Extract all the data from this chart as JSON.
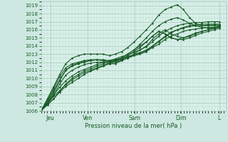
{
  "bg_color": "#cce8e0",
  "plot_bg_color": "#d8f0e8",
  "grid_color_major": "#a8c8c0",
  "grid_color_minor": "#b8d8d0",
  "line_color": "#1a5c28",
  "marker_color": "#1a5c28",
  "xlabel_text": "Pression niveau de la mer( hPa )",
  "ylim": [
    1006,
    1019.5
  ],
  "yticks": [
    1006,
    1007,
    1008,
    1009,
    1010,
    1011,
    1012,
    1013,
    1014,
    1015,
    1016,
    1017,
    1018,
    1019
  ],
  "xlim": [
    0.0,
    4.35
  ],
  "xtick_positions": [
    0.22,
    1.1,
    2.2,
    3.3,
    4.2
  ],
  "xtick_labels": [
    "Jeu",
    "Ven",
    "Sam",
    "Dim",
    "L"
  ],
  "series": [
    [
      1006.0,
      1006.8,
      1007.5,
      1008.3,
      1009.0,
      1009.5,
      1010.0,
      1010.5,
      1010.9,
      1011.2,
      1011.5,
      1011.8,
      1012.0,
      1012.2,
      1012.5,
      1012.8,
      1013.0,
      1013.3,
      1013.8,
      1014.2,
      1014.8,
      1015.2,
      1015.5,
      1015.8,
      1016.0,
      1016.1,
      1016.2,
      1016.3,
      1016.3,
      1016.4
    ],
    [
      1006.0,
      1006.9,
      1007.8,
      1008.5,
      1009.2,
      1009.8,
      1010.3,
      1010.7,
      1011.0,
      1011.3,
      1011.6,
      1011.9,
      1012.2,
      1012.4,
      1012.6,
      1012.9,
      1013.2,
      1013.5,
      1014.0,
      1014.6,
      1015.2,
      1015.7,
      1016.0,
      1016.2,
      1016.4,
      1016.5,
      1016.5,
      1016.6,
      1016.6,
      1016.6
    ],
    [
      1006.0,
      1006.7,
      1007.5,
      1008.4,
      1009.3,
      1010.0,
      1010.5,
      1010.9,
      1011.2,
      1011.5,
      1011.8,
      1012.1,
      1012.3,
      1012.5,
      1012.7,
      1012.9,
      1013.1,
      1013.4,
      1013.9,
      1014.5,
      1015.1,
      1015.6,
      1016.0,
      1016.3,
      1016.5,
      1016.6,
      1016.7,
      1016.7,
      1016.7,
      1016.7
    ],
    [
      1006.1,
      1007.0,
      1008.0,
      1008.9,
      1009.7,
      1010.3,
      1010.8,
      1011.1,
      1011.4,
      1011.7,
      1012.0,
      1012.2,
      1012.4,
      1012.7,
      1012.9,
      1013.2,
      1013.5,
      1013.9,
      1014.5,
      1015.2,
      1015.8,
      1016.2,
      1016.5,
      1016.7,
      1016.8,
      1016.9,
      1016.9,
      1017.0,
      1017.0,
      1017.0
    ],
    [
      1006.0,
      1006.9,
      1008.0,
      1009.3,
      1010.4,
      1011.0,
      1011.4,
      1011.7,
      1011.9,
      1012.0,
      1012.0,
      1011.8,
      1011.8,
      1012.2,
      1012.5,
      1013.0,
      1013.5,
      1014.0,
      1014.8,
      1015.5,
      1016.0,
      1015.5,
      1015.2,
      1015.0,
      1015.2,
      1015.5,
      1015.8,
      1016.0,
      1016.2,
      1016.4
    ],
    [
      1006.0,
      1007.2,
      1008.5,
      1009.8,
      1011.0,
      1011.5,
      1011.8,
      1012.0,
      1012.2,
      1012.3,
      1012.3,
      1012.2,
      1012.3,
      1012.5,
      1013.0,
      1013.5,
      1014.0,
      1014.5,
      1015.2,
      1015.8,
      1015.5,
      1015.0,
      1014.8,
      1014.8,
      1015.0,
      1015.3,
      1015.6,
      1015.8,
      1016.0,
      1016.2
    ],
    [
      1006.0,
      1007.5,
      1009.0,
      1010.5,
      1011.8,
      1012.5,
      1012.8,
      1013.0,
      1013.0,
      1013.0,
      1013.0,
      1012.8,
      1013.0,
      1013.3,
      1013.8,
      1014.5,
      1015.2,
      1016.0,
      1016.8,
      1017.8,
      1018.5,
      1018.8,
      1019.1,
      1018.5,
      1017.5,
      1016.8,
      1016.5,
      1016.5,
      1016.5,
      1016.5
    ],
    [
      1006.0,
      1007.3,
      1008.8,
      1010.2,
      1011.3,
      1011.8,
      1012.0,
      1012.2,
      1012.3,
      1012.3,
      1012.2,
      1012.0,
      1012.1,
      1012.3,
      1012.8,
      1013.3,
      1013.8,
      1014.5,
      1015.2,
      1015.8,
      1015.5,
      1015.0,
      1014.8,
      1015.0,
      1015.3,
      1015.6,
      1015.8,
      1016.0,
      1016.2,
      1016.4
    ],
    [
      1006.0,
      1007.0,
      1008.3,
      1009.7,
      1011.0,
      1011.6,
      1011.9,
      1012.1,
      1012.2,
      1012.3,
      1012.2,
      1012.0,
      1012.2,
      1012.5,
      1013.0,
      1013.5,
      1014.2,
      1015.0,
      1015.8,
      1016.5,
      1017.0,
      1017.3,
      1017.5,
      1017.2,
      1016.8,
      1016.5,
      1016.3,
      1016.2,
      1016.2,
      1016.3
    ]
  ],
  "x_values": [
    0.0,
    0.15,
    0.3,
    0.44,
    0.58,
    0.73,
    0.88,
    1.02,
    1.17,
    1.31,
    1.46,
    1.61,
    1.75,
    1.9,
    2.04,
    2.19,
    2.33,
    2.48,
    2.62,
    2.77,
    2.92,
    3.06,
    3.21,
    3.35,
    3.5,
    3.64,
    3.79,
    3.94,
    4.08,
    4.2
  ]
}
